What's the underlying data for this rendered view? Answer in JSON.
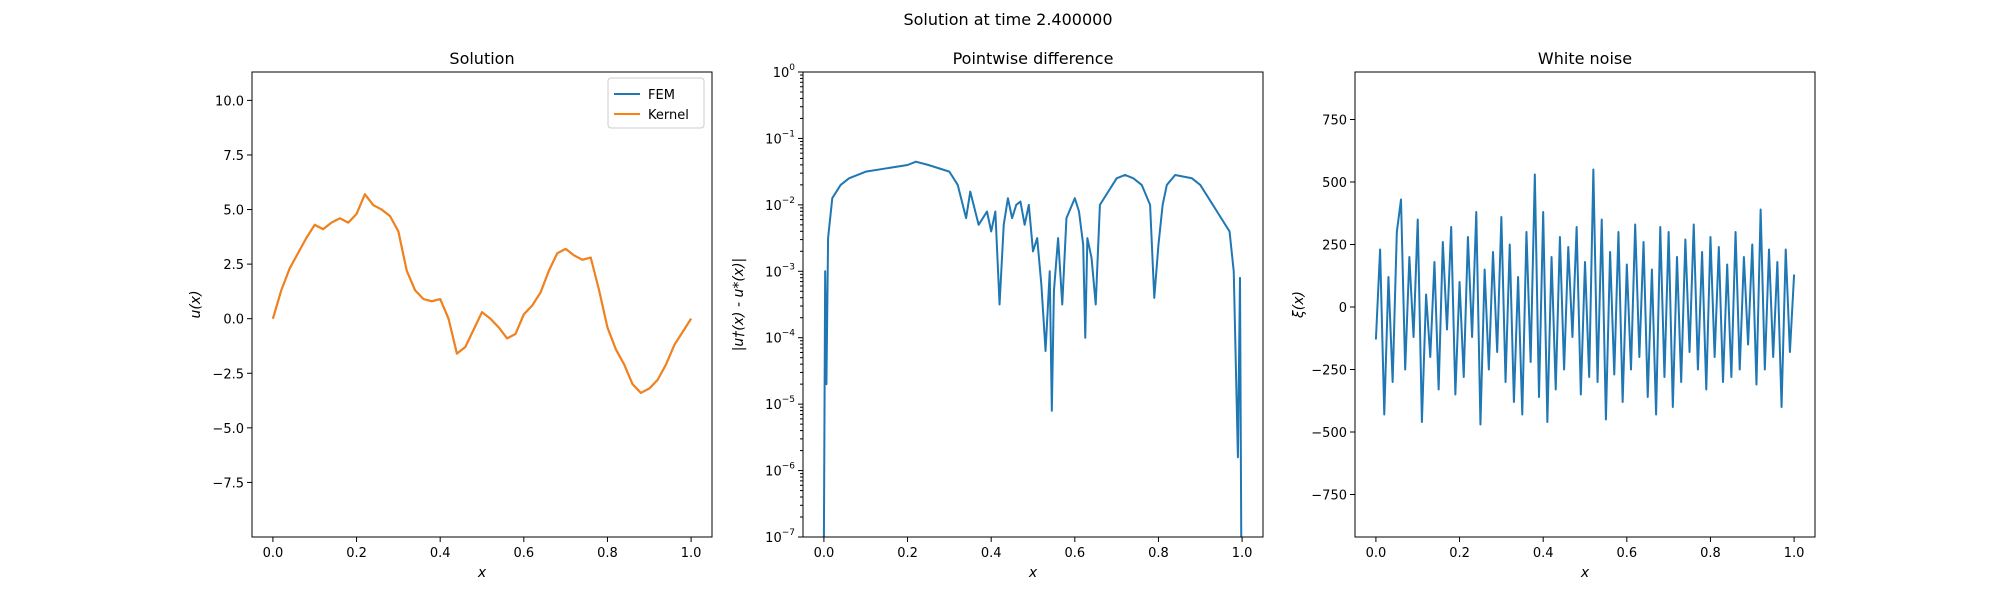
{
  "figure": {
    "suptitle": "Solution at time 2.400000"
  },
  "colors": {
    "fem": "#1f77b4",
    "kernel": "#ff7f0e",
    "noise": "#1f77b4",
    "diff": "#1f77b4"
  },
  "chart_data": [
    {
      "type": "line",
      "title": "Solution",
      "xlabel": "x",
      "ylabel": "u(x)",
      "xlim": [
        -0.05,
        1.05
      ],
      "ylim": [
        -10,
        11.3
      ],
      "xticks": [
        0.0,
        0.2,
        0.4,
        0.6,
        0.8,
        1.0
      ],
      "xtick_labels": [
        "0.0",
        "0.2",
        "0.4",
        "0.6",
        "0.8",
        "1.0"
      ],
      "yticks": [
        -7.5,
        -5.0,
        -2.5,
        0.0,
        2.5,
        5.0,
        7.5,
        10.0
      ],
      "ytick_labels": [
        "−7.5",
        "−5.0",
        "−2.5",
        "0.0",
        "2.5",
        "5.0",
        "7.5",
        "10.0"
      ],
      "legend": {
        "position": "upper right",
        "entries": [
          "FEM",
          "Kernel"
        ]
      },
      "series": [
        {
          "name": "FEM",
          "color": "#1f77b4",
          "x": [
            0.0,
            0.02,
            0.04,
            0.06,
            0.08,
            0.1,
            0.12,
            0.14,
            0.16,
            0.18,
            0.2,
            0.22,
            0.24,
            0.26,
            0.28,
            0.3,
            0.32,
            0.34,
            0.36,
            0.38,
            0.4,
            0.42,
            0.44,
            0.46,
            0.48,
            0.5,
            0.52,
            0.54,
            0.56,
            0.58,
            0.6,
            0.62,
            0.64,
            0.66,
            0.68,
            0.7,
            0.72,
            0.74,
            0.76,
            0.78,
            0.8,
            0.82,
            0.84,
            0.86,
            0.88,
            0.9,
            0.92,
            0.94,
            0.96,
            0.98,
            1.0
          ],
          "y": [
            0.0,
            1.3,
            2.3,
            3.0,
            3.7,
            4.3,
            4.1,
            4.4,
            4.6,
            4.4,
            4.8,
            5.7,
            5.2,
            5.0,
            4.7,
            4.0,
            2.2,
            1.3,
            0.9,
            0.8,
            0.9,
            0.0,
            -1.6,
            -1.3,
            -0.5,
            0.3,
            0.0,
            -0.4,
            -0.9,
            -0.7,
            0.2,
            0.6,
            1.2,
            2.2,
            3.0,
            3.2,
            2.9,
            2.7,
            2.8,
            1.3,
            -0.4,
            -1.4,
            -2.1,
            -3.0,
            -3.4,
            -3.2,
            -2.8,
            -2.1,
            -1.2,
            -0.6,
            0.0
          ]
        },
        {
          "name": "Kernel",
          "color": "#ff7f0e",
          "x": [
            0.0,
            0.02,
            0.04,
            0.06,
            0.08,
            0.1,
            0.12,
            0.14,
            0.16,
            0.18,
            0.2,
            0.22,
            0.24,
            0.26,
            0.28,
            0.3,
            0.32,
            0.34,
            0.36,
            0.38,
            0.4,
            0.42,
            0.44,
            0.46,
            0.48,
            0.5,
            0.52,
            0.54,
            0.56,
            0.58,
            0.6,
            0.62,
            0.64,
            0.66,
            0.68,
            0.7,
            0.72,
            0.74,
            0.76,
            0.78,
            0.8,
            0.82,
            0.84,
            0.86,
            0.88,
            0.9,
            0.92,
            0.94,
            0.96,
            0.98,
            1.0
          ],
          "y": [
            0.0,
            1.3,
            2.3,
            3.0,
            3.7,
            4.3,
            4.1,
            4.4,
            4.6,
            4.4,
            4.8,
            5.7,
            5.2,
            5.0,
            4.7,
            4.0,
            2.2,
            1.3,
            0.9,
            0.8,
            0.9,
            0.0,
            -1.6,
            -1.3,
            -0.5,
            0.3,
            0.0,
            -0.4,
            -0.9,
            -0.7,
            0.2,
            0.6,
            1.2,
            2.2,
            3.0,
            3.2,
            2.9,
            2.7,
            2.8,
            1.3,
            -0.4,
            -1.4,
            -2.1,
            -3.0,
            -3.4,
            -3.2,
            -2.8,
            -2.1,
            -1.2,
            -0.6,
            0.0
          ]
        }
      ]
    },
    {
      "type": "line",
      "title": "Pointwise difference",
      "xlabel": "x",
      "ylabel": "|u†(x) - u*(x)|",
      "yscale": "log",
      "xlim": [
        -0.05,
        1.05
      ],
      "ylim_log10": [
        -7,
        0
      ],
      "xticks": [
        0.0,
        0.2,
        0.4,
        0.6,
        0.8,
        1.0
      ],
      "xtick_labels": [
        "0.0",
        "0.2",
        "0.4",
        "0.6",
        "0.8",
        "1.0"
      ],
      "yticks_log10": [
        -7,
        -6,
        -5,
        -4,
        -3,
        -2,
        -1,
        0
      ],
      "series": [
        {
          "name": "",
          "color": "#1f77b4",
          "x": [
            0.0,
            0.003,
            0.006,
            0.01,
            0.02,
            0.04,
            0.06,
            0.1,
            0.15,
            0.2,
            0.22,
            0.25,
            0.3,
            0.32,
            0.34,
            0.35,
            0.37,
            0.39,
            0.4,
            0.41,
            0.42,
            0.43,
            0.44,
            0.45,
            0.46,
            0.47,
            0.48,
            0.49,
            0.5,
            0.51,
            0.52,
            0.53,
            0.54,
            0.545,
            0.55,
            0.56,
            0.57,
            0.58,
            0.6,
            0.61,
            0.62,
            0.625,
            0.63,
            0.64,
            0.65,
            0.66,
            0.7,
            0.72,
            0.74,
            0.76,
            0.78,
            0.79,
            0.8,
            0.81,
            0.82,
            0.84,
            0.88,
            0.9,
            0.92,
            0.95,
            0.97,
            0.98,
            0.99,
            0.995,
            0.998,
            1.0
          ],
          "y_log10": [
            -7.0,
            -3.0,
            -4.7,
            -2.5,
            -1.9,
            -1.7,
            -1.6,
            -1.5,
            -1.45,
            -1.4,
            -1.35,
            -1.4,
            -1.5,
            -1.7,
            -2.2,
            -1.8,
            -2.3,
            -2.1,
            -2.4,
            -2.1,
            -3.5,
            -2.3,
            -1.9,
            -2.2,
            -2.0,
            -1.95,
            -2.3,
            -2.0,
            -2.7,
            -2.5,
            -3.2,
            -4.2,
            -3.0,
            -5.1,
            -3.3,
            -2.5,
            -3.5,
            -2.2,
            -1.9,
            -2.1,
            -2.6,
            -4.0,
            -2.5,
            -2.8,
            -3.5,
            -2.0,
            -1.6,
            -1.55,
            -1.6,
            -1.7,
            -2.0,
            -3.4,
            -2.6,
            -2.0,
            -1.7,
            -1.55,
            -1.6,
            -1.7,
            -1.9,
            -2.2,
            -2.4,
            -3.0,
            -5.8,
            -3.1,
            -7.0,
            -7.0
          ]
        }
      ]
    },
    {
      "type": "line",
      "title": "White noise",
      "xlabel": "x",
      "ylabel": "ξ(x)",
      "xlim": [
        -0.05,
        1.05
      ],
      "ylim": [
        -920,
        940
      ],
      "xticks": [
        0.0,
        0.2,
        0.4,
        0.6,
        0.8,
        1.0
      ],
      "xtick_labels": [
        "0.0",
        "0.2",
        "0.4",
        "0.6",
        "0.8",
        "1.0"
      ],
      "yticks": [
        -750,
        -500,
        -250,
        0,
        250,
        500,
        750
      ],
      "ytick_labels": [
        "−750",
        "−500",
        "−250",
        "0",
        "250",
        "500",
        "750"
      ],
      "series": [
        {
          "name": "",
          "color": "#1f77b4",
          "x": [
            0.0,
            0.01,
            0.02,
            0.03,
            0.04,
            0.05,
            0.06,
            0.07,
            0.08,
            0.09,
            0.1,
            0.11,
            0.12,
            0.13,
            0.14,
            0.15,
            0.16,
            0.17,
            0.18,
            0.19,
            0.2,
            0.21,
            0.22,
            0.23,
            0.24,
            0.25,
            0.26,
            0.27,
            0.28,
            0.29,
            0.3,
            0.31,
            0.32,
            0.33,
            0.34,
            0.35,
            0.36,
            0.37,
            0.38,
            0.39,
            0.4,
            0.41,
            0.42,
            0.43,
            0.44,
            0.45,
            0.46,
            0.47,
            0.48,
            0.49,
            0.5,
            0.51,
            0.52,
            0.53,
            0.54,
            0.55,
            0.56,
            0.57,
            0.58,
            0.59,
            0.6,
            0.61,
            0.62,
            0.63,
            0.64,
            0.65,
            0.66,
            0.67,
            0.68,
            0.69,
            0.7,
            0.71,
            0.72,
            0.73,
            0.74,
            0.75,
            0.76,
            0.77,
            0.78,
            0.79,
            0.8,
            0.81,
            0.82,
            0.83,
            0.84,
            0.85,
            0.86,
            0.87,
            0.88,
            0.89,
            0.9,
            0.91,
            0.92,
            0.93,
            0.94,
            0.95,
            0.96,
            0.97,
            0.98,
            0.99,
            1.0
          ],
          "y": [
            -130,
            230,
            -430,
            120,
            -300,
            300,
            430,
            -250,
            200,
            -120,
            350,
            -460,
            50,
            -200,
            180,
            -330,
            260,
            -90,
            320,
            -350,
            100,
            -280,
            280,
            -120,
            380,
            -470,
            150,
            -250,
            220,
            -180,
            360,
            -300,
            250,
            -380,
            120,
            -430,
            300,
            -220,
            530,
            -360,
            380,
            -460,
            200,
            -330,
            280,
            -250,
            240,
            -120,
            320,
            -350,
            180,
            -280,
            550,
            -300,
            350,
            -450,
            220,
            -270,
            300,
            -380,
            170,
            -250,
            330,
            -200,
            260,
            -360,
            150,
            -430,
            320,
            -280,
            300,
            -400,
            200,
            -300,
            270,
            -180,
            330,
            -250,
            220,
            -330,
            280,
            -200,
            240,
            -300,
            170,
            -280,
            300,
            -250,
            200,
            -150,
            250,
            -310,
            390,
            -250,
            230,
            -200,
            180,
            -400,
            230,
            -180,
            130
          ]
        }
      ]
    }
  ]
}
